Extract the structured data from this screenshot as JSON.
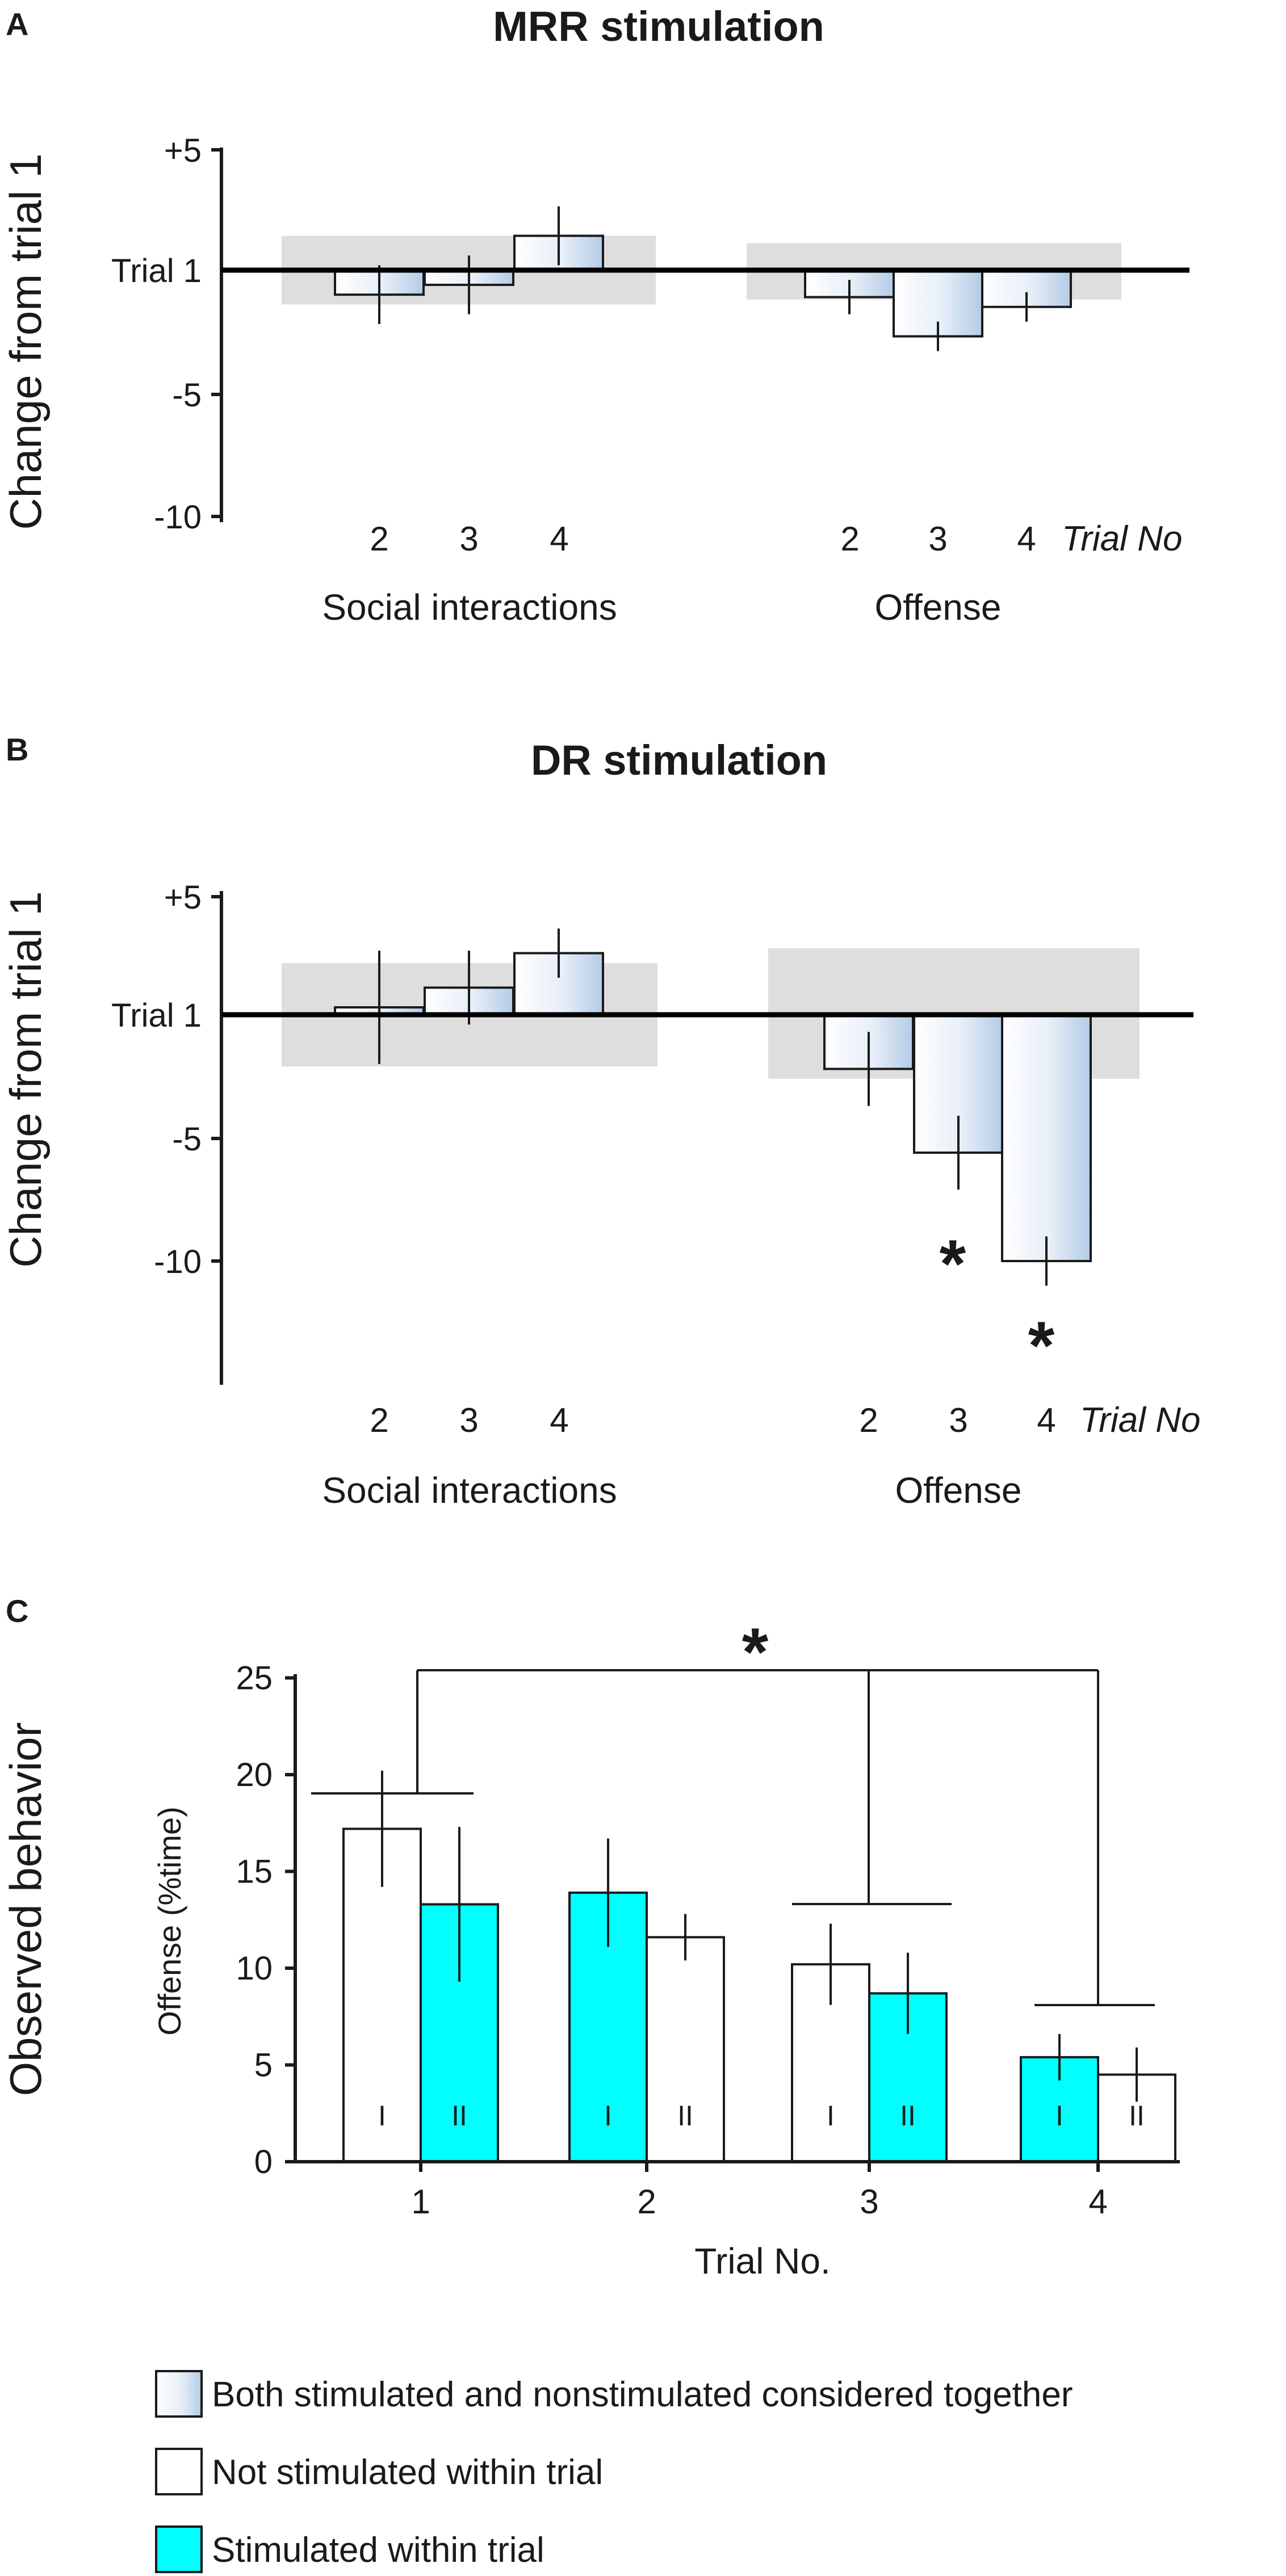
{
  "colors": {
    "cyan": "#00ffff",
    "shade": "#dedede",
    "gradient_light": "#ffffff",
    "gradient_dark": "#b8cfe8"
  },
  "shared": {
    "ylabel_change": "Change from trial 1",
    "ytick_labels": [
      "+5",
      "Trial 1",
      "-5",
      "-10"
    ],
    "trial_no_label": "Trial  No",
    "group_social": "Social interactions",
    "group_offense": "Offense",
    "cat_labels": [
      "2",
      "3",
      "4"
    ]
  },
  "chart_data": [
    {
      "panel": "A",
      "type": "bar",
      "title": "MRR stimulation",
      "ylabel": "Change from trial 1",
      "ylim": [
        -10,
        5
      ],
      "baseline_label": "Trial 1",
      "groups": [
        {
          "name": "Social interactions",
          "categories": [
            "2",
            "3",
            "4"
          ],
          "values": [
            -1,
            -0.6,
            1.4
          ],
          "errors": [
            1.2,
            1.2,
            1.2
          ],
          "shade_range": [
            -1.4,
            1.4
          ]
        },
        {
          "name": "Offense",
          "categories": [
            "2",
            "3",
            "4"
          ],
          "values": [
            -1.1,
            -2.7,
            -1.5
          ],
          "errors": [
            0.7,
            0.6,
            0.6
          ],
          "shade_range": [
            -1.2,
            1.1
          ]
        }
      ],
      "xlabel": "Trial  No"
    },
    {
      "panel": "B",
      "type": "bar",
      "title": "DR stimulation",
      "ylabel": "Change from trial 1",
      "ylim": [
        -15,
        5
      ],
      "baseline_label": "Trial 1",
      "groups": [
        {
          "name": "Social interactions",
          "categories": [
            "2",
            "3",
            "4"
          ],
          "values": [
            0.3,
            1.1,
            2.5
          ],
          "errors": [
            2.3,
            1.5,
            1.0
          ],
          "shade_range": [
            -2.1,
            2.1
          ]
        },
        {
          "name": "Offense",
          "categories": [
            "2",
            "3",
            "4"
          ],
          "values": [
            -2.2,
            -5.6,
            -10.0
          ],
          "errors": [
            1.5,
            1.5,
            1.0
          ],
          "shade_range": [
            -2.6,
            2.7
          ],
          "significant": [
            false,
            true,
            true
          ]
        }
      ],
      "significance_marker": "*",
      "xlabel": "Trial  No"
    },
    {
      "panel": "C",
      "type": "bar",
      "ylabel_outer": "Observed behavior",
      "ylabel": "Offense (%time)",
      "xlabel": "Trial No.",
      "ylim": [
        0,
        25
      ],
      "yticks": [
        0,
        5,
        10,
        15,
        20,
        25
      ],
      "categories": [
        "1",
        "2",
        "3",
        "4"
      ],
      "bars": [
        [
          {
            "group": "I",
            "value": 17.2,
            "error": 3.0,
            "stimulated": false
          },
          {
            "group": "II",
            "value": 13.3,
            "error": 4.0,
            "stimulated": true
          }
        ],
        [
          {
            "group": "I",
            "value": 13.9,
            "error": 2.8,
            "stimulated": true
          },
          {
            "group": "II",
            "value": 11.6,
            "error": 1.2,
            "stimulated": false
          }
        ],
        [
          {
            "group": "I",
            "value": 10.2,
            "error": 2.1,
            "stimulated": false
          },
          {
            "group": "II",
            "value": 8.7,
            "error": 2.1,
            "stimulated": true
          }
        ],
        [
          {
            "group": "I",
            "value": 5.4,
            "error": 1.2,
            "stimulated": true
          },
          {
            "group": "II",
            "value": 4.5,
            "error": 1.4,
            "stimulated": false
          }
        ]
      ],
      "group_labels": [
        "I",
        "II"
      ],
      "significance_marker": "*"
    }
  ],
  "legend": [
    {
      "swatch": "gradient",
      "label": "Both  stimulated and nonstimulated considered together"
    },
    {
      "swatch": "white",
      "label": "Not stimulated within trial"
    },
    {
      "swatch": "cyan",
      "label": "Stimulated within trial"
    }
  ]
}
